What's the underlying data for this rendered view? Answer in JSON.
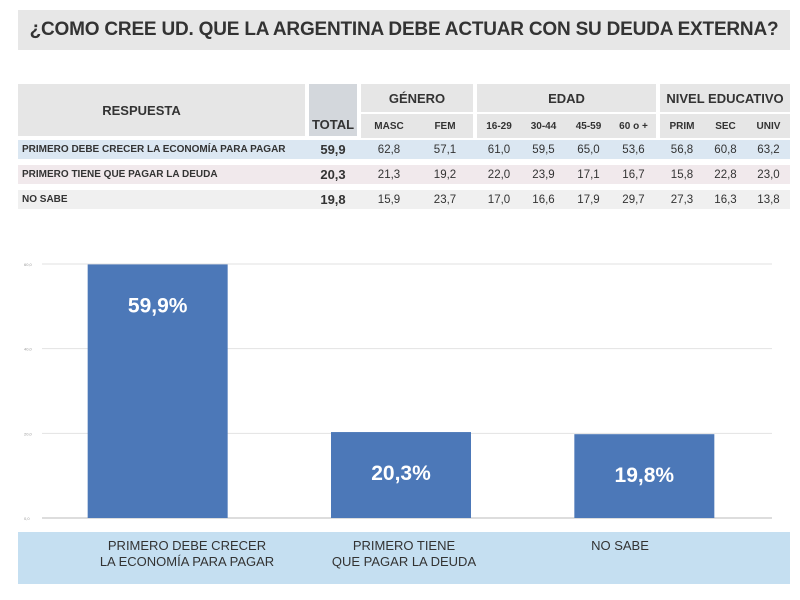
{
  "title": "¿COMO CREE UD. QUE LA ARGENTINA DEBE ACTUAR CON SU DEUDA EXTERNA?",
  "table": {
    "respuesta_header": "RESPUESTA",
    "total_header": "TOTAL",
    "groups": [
      {
        "label": "GÉNERO",
        "columns": [
          "MASC",
          "FEM"
        ]
      },
      {
        "label": "EDAD",
        "columns": [
          "16-29",
          "30-44",
          "45-59",
          "60 o +"
        ]
      },
      {
        "label": "NIVEL EDUCATIVO",
        "columns": [
          "PRIM",
          "SEC",
          "UNIV"
        ]
      }
    ],
    "rows": [
      {
        "label": "PRIMERO DEBE CRECER LA ECONOMÍA PARA PAGAR",
        "total": "59,9",
        "values": [
          "62,8",
          "57,1",
          "61,0",
          "59,5",
          "65,0",
          "53,6",
          "56,8",
          "60,8",
          "63,2"
        ]
      },
      {
        "label": "PRIMERO TIENE QUE PAGAR LA DEUDA",
        "total": "20,3",
        "values": [
          "21,3",
          "19,2",
          "22,0",
          "23,9",
          "17,1",
          "16,7",
          "15,8",
          "22,8",
          "23,0"
        ]
      },
      {
        "label": "NO SABE",
        "total": "19,8",
        "values": [
          "15,9",
          "23,7",
          "17,0",
          "16,6",
          "17,9",
          "29,7",
          "27,3",
          "16,3",
          "13,8"
        ]
      }
    ]
  },
  "chart_data": {
    "type": "bar",
    "title": "",
    "categories": [
      "PRIMERO DEBE CRECER\nLA ECONOMÍA PARA PAGAR",
      "PRIMERO TIENE\nQUE PAGAR LA DEUDA",
      "NO SABE"
    ],
    "values": [
      59.9,
      20.3,
      19.8
    ],
    "data_labels": [
      "59,9%",
      "20,3%",
      "19,8%"
    ],
    "ylim": [
      0,
      60
    ],
    "yticks": [
      0,
      20,
      40,
      60
    ],
    "ytick_labels": [
      "0,0",
      "20,0",
      "40,0",
      "60,0"
    ],
    "grid": true,
    "bar_color": "#4c78b8"
  }
}
